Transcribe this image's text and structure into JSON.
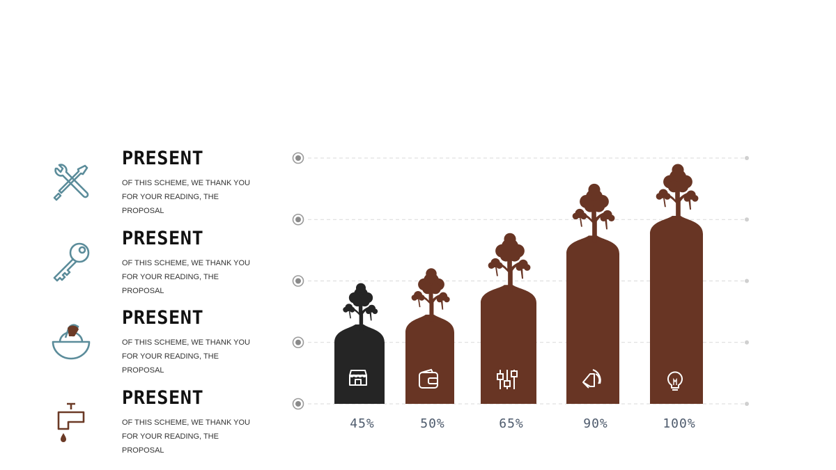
{
  "items": [
    {
      "title": "PRESENT",
      "description": "OF THIS SCHEME, WE THANK YOU FOR YOUR READING, THE PROPOSAL",
      "icon": "tools-icon"
    },
    {
      "title": "PRESENT",
      "description": "OF THIS SCHEME, WE THANK YOU FOR YOUR READING, THE PROPOSAL",
      "icon": "key-icon"
    },
    {
      "title": "PRESENT",
      "description": "OF THIS SCHEME, WE THANK YOU FOR YOUR READING, THE PROPOSAL",
      "icon": "juicer-icon"
    },
    {
      "title": "PRESENT",
      "description": "OF THIS SCHEME, WE THANK YOU FOR YOUR READING, THE PROPOSAL",
      "icon": "faucet-icon"
    }
  ],
  "colors": {
    "bar_primary": "#683524",
    "bar_highlight": "#252525",
    "icon_outline": "#5b8c9a",
    "icon_accent": "#6b3a26",
    "grid": "#d9d9d9"
  },
  "chart_data": {
    "type": "bar",
    "categories": [
      "45%",
      "50%",
      "65%",
      "90%",
      "100%"
    ],
    "values": [
      45,
      50,
      65,
      90,
      100
    ],
    "value_labels": [
      "45%",
      "50%",
      "65%",
      "90%",
      "100%"
    ],
    "bar_icons": [
      "shop-icon",
      "wallet-icon",
      "sliders-icon",
      "speaker-icon",
      "lightbulb-icon"
    ],
    "highlighted_index": 0,
    "ylim": [
      0,
      100
    ],
    "gridlines": 5,
    "grid": true,
    "title": "",
    "xlabel": "",
    "ylabel": ""
  }
}
